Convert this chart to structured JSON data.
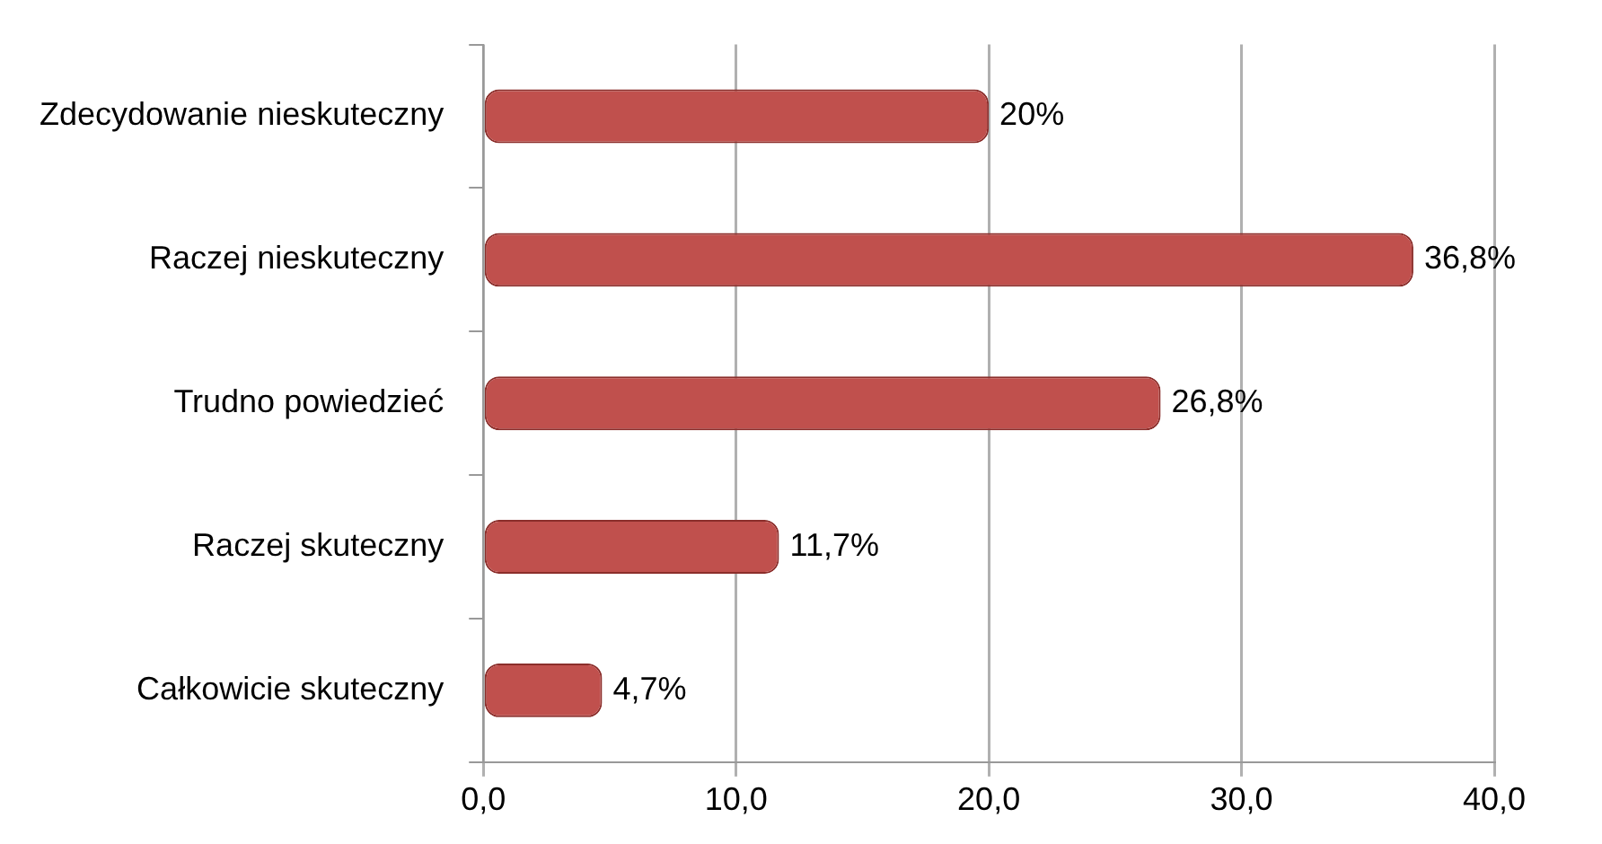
{
  "chart_data": {
    "type": "bar",
    "orientation": "horizontal",
    "categories": [
      "Zdecydowanie nieskuteczny",
      "Raczej nieskuteczny",
      "Trudno powiedzieć",
      "Raczej skuteczny",
      "Całkowicie skuteczny"
    ],
    "values": [
      20,
      36.8,
      26.8,
      11.7,
      4.7
    ],
    "value_labels": [
      "20%",
      "36,8%",
      "26,8%",
      "11,7%",
      "4,7%"
    ],
    "color": "#c0504d",
    "xlim": [
      0,
      40
    ],
    "xticks": [
      {
        "value": 0,
        "label": "0,0"
      },
      {
        "value": 10,
        "label": "10,0"
      },
      {
        "value": 20,
        "label": "20,0"
      },
      {
        "value": 30,
        "label": "30,0"
      },
      {
        "value": 40,
        "label": "40,0"
      }
    ],
    "grid": "x"
  }
}
